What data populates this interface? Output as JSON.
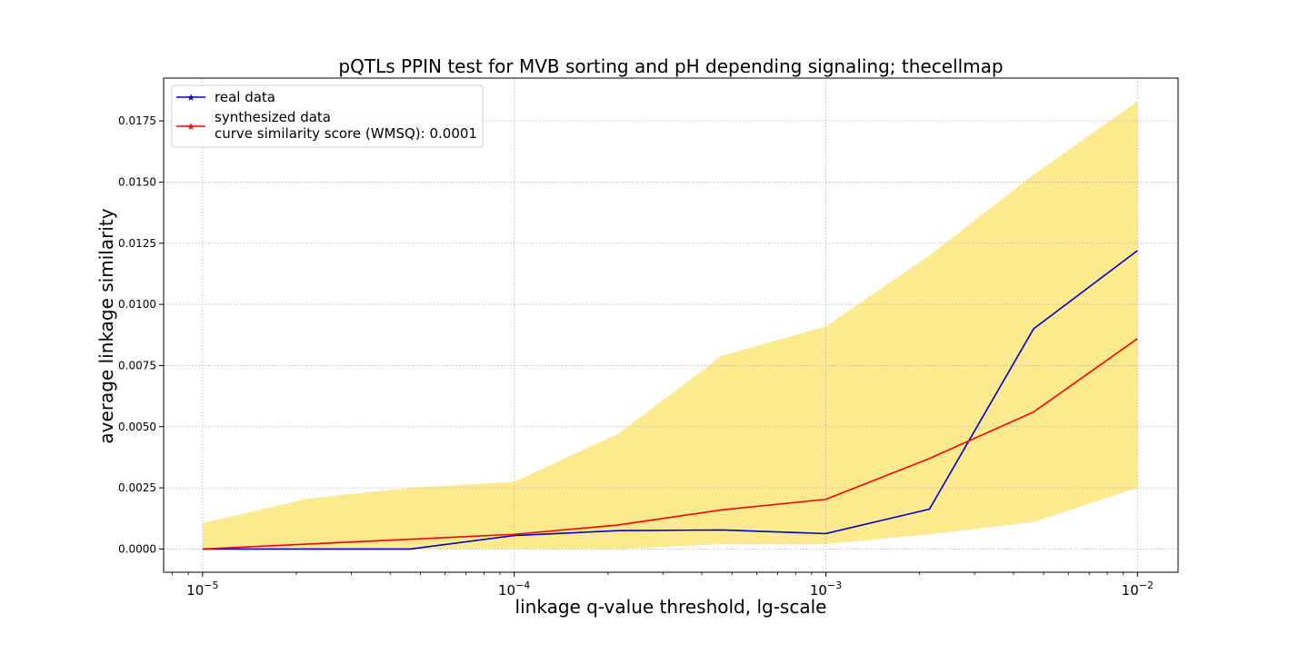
{
  "chart_data": {
    "type": "line",
    "title": "pQTLs PPIN test for MVB sorting and pH depending signaling; thecellmap",
    "xlabel": "linkage q-value threshold, lg-scale",
    "ylabel": "average linkage similarity",
    "xscale": "log",
    "xlim": [
      7.5e-06,
      0.0135
    ],
    "ylim": [
      -0.00095,
      0.01925
    ],
    "grid": true,
    "legend_position": "top-left",
    "x": [
      1e-05,
      2.15e-05,
      4.64e-05,
      0.0001,
      0.000215,
      0.000464,
      0.001,
      0.00215,
      0.00464,
      0.01
    ],
    "x_ticks": [
      {
        "value": 1e-05,
        "base": "10",
        "exp": "−5"
      },
      {
        "value": 0.0001,
        "base": "10",
        "exp": "−4"
      },
      {
        "value": 0.001,
        "base": "10",
        "exp": "−3"
      },
      {
        "value": 0.01,
        "base": "10",
        "exp": "−2"
      }
    ],
    "y_ticks": [
      "0.0000",
      "0.0025",
      "0.0050",
      "0.0075",
      "0.0100",
      "0.0125",
      "0.0150",
      "0.0175"
    ],
    "band": {
      "color": "#fde98e",
      "lower": [
        0.0,
        0.0,
        0.0,
        0.0,
        0.0,
        0.0002,
        0.0002,
        0.0006,
        0.0011,
        0.0025
      ],
      "upper": [
        0.00105,
        0.00205,
        0.0025,
        0.00275,
        0.0047,
        0.0079,
        0.0091,
        0.012,
        0.0153,
        0.0183
      ]
    },
    "series": [
      {
        "name": "real data",
        "color": "#0000cc",
        "values": [
          0.0,
          0.0,
          0.0,
          0.00055,
          0.00075,
          0.00078,
          0.00063,
          0.00163,
          0.009,
          0.0122
        ]
      },
      {
        "name": "synthesized data\ncurve similarity score (WMSQ): 0.0001",
        "color": "#ff0000",
        "values": [
          0.0,
          0.0002,
          0.0004,
          0.0006,
          0.00098,
          0.0016,
          0.00203,
          0.0037,
          0.0056,
          0.0086
        ]
      }
    ]
  }
}
